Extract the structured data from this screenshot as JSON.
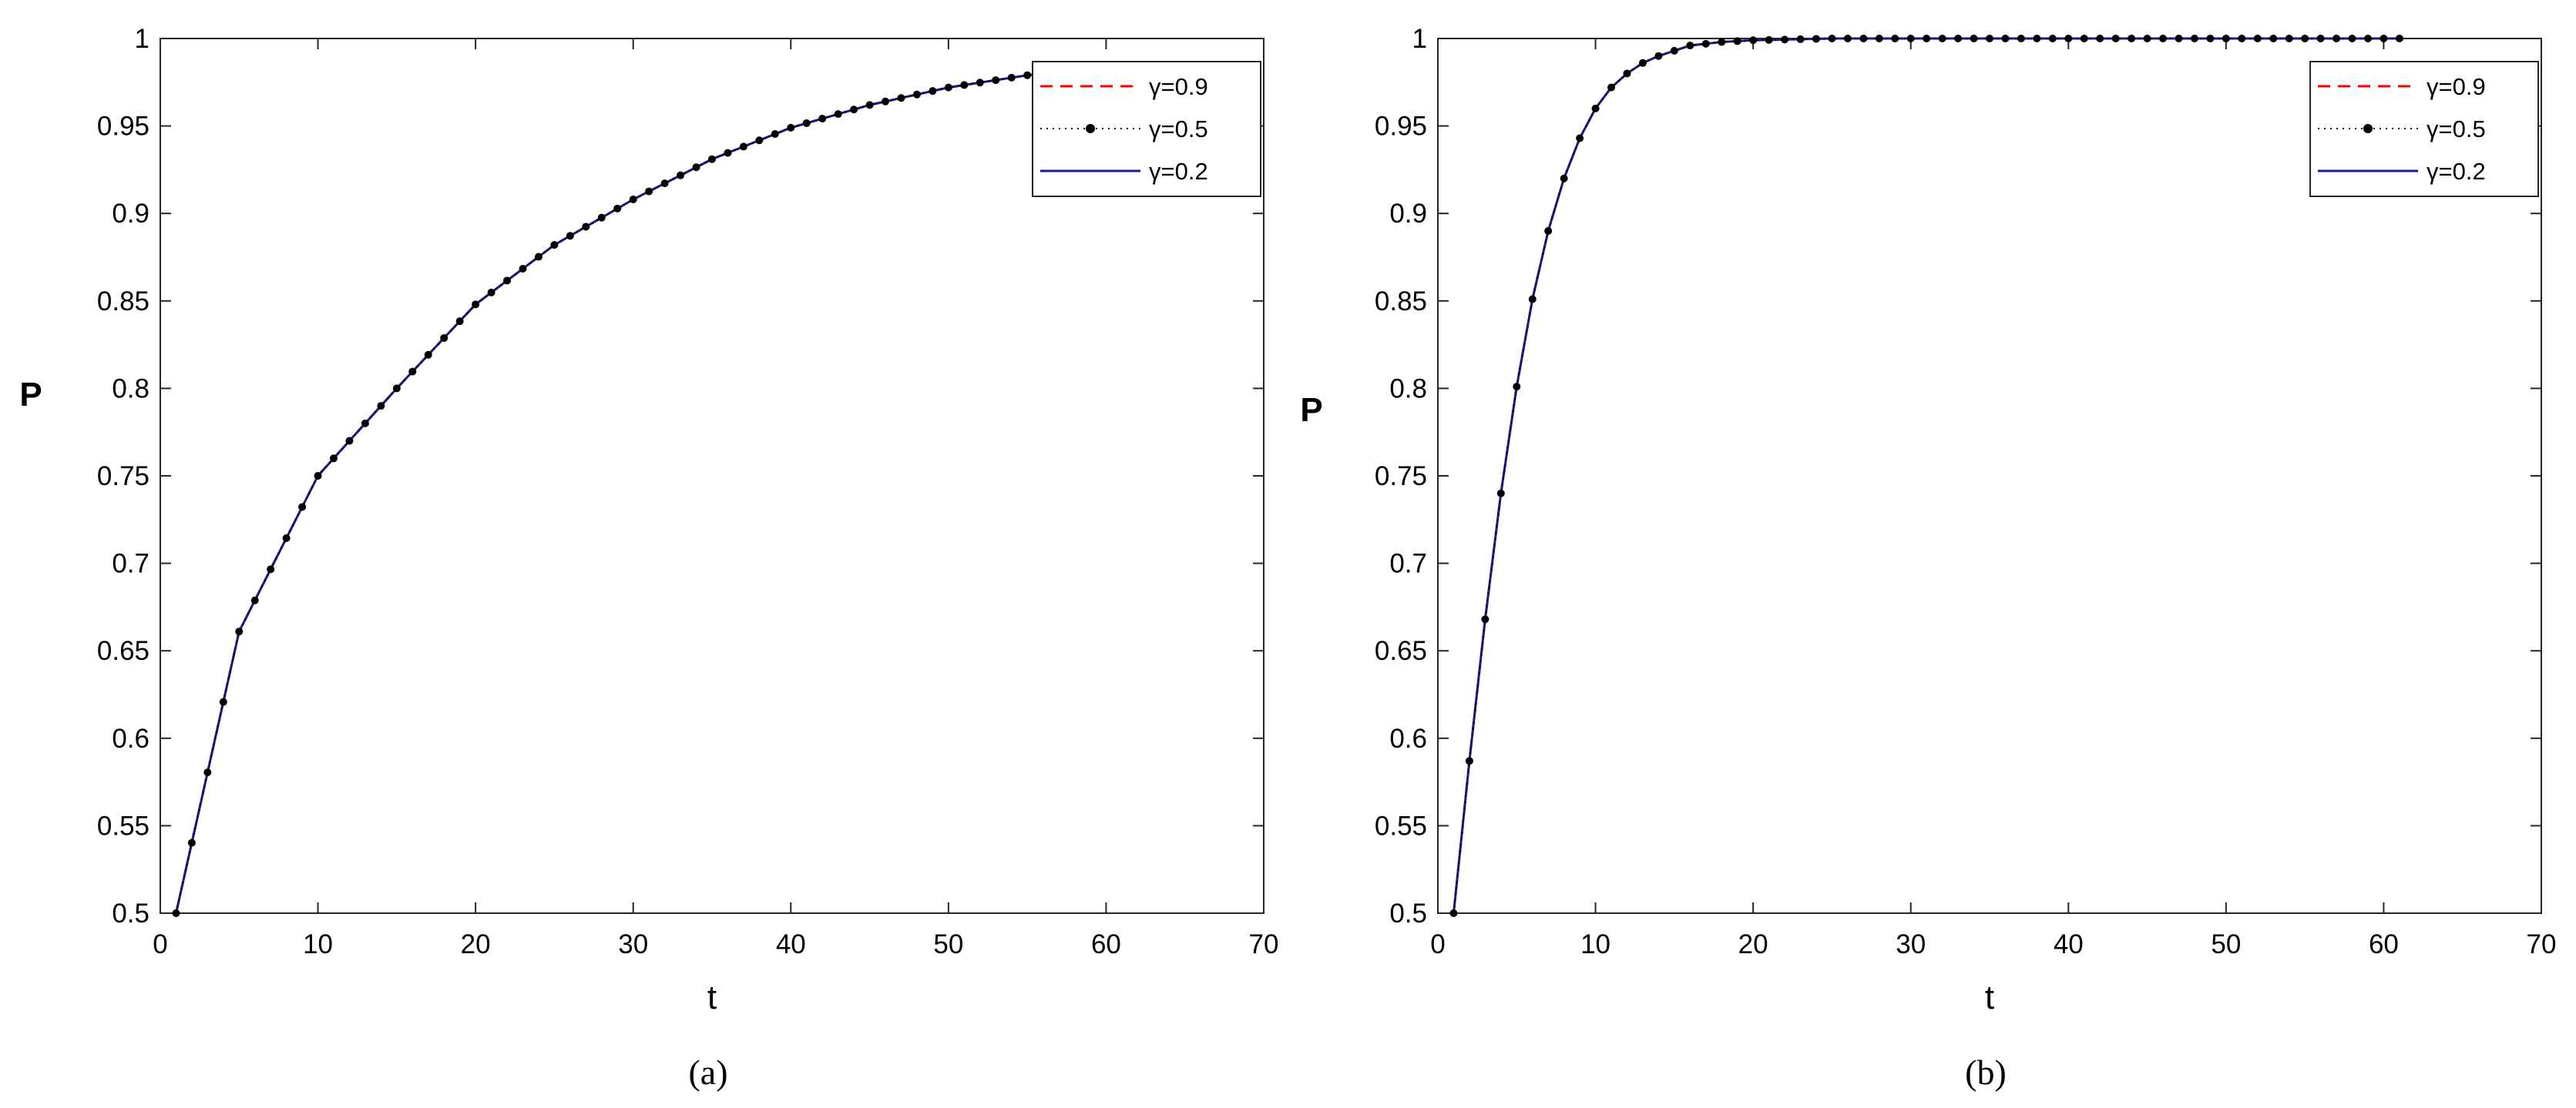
{
  "chart_data": [
    {
      "type": "line",
      "caption": "(a)",
      "xlabel": "t",
      "ylabel": "P",
      "xlim": [
        0,
        70
      ],
      "ylim": [
        0.5,
        1
      ],
      "xticks": [
        0,
        10,
        20,
        30,
        40,
        50,
        60,
        70
      ],
      "yticks": [
        0.5,
        0.55,
        0.6,
        0.65,
        0.7,
        0.75,
        0.8,
        0.85,
        0.9,
        0.95,
        1
      ],
      "ytick_labels": [
        "0.5",
        "0.55",
        "0.6",
        "0.65",
        "0.7",
        "0.75",
        "0.8",
        "0.85",
        "0.9",
        "0.95",
        "1"
      ],
      "legend_position": "top-right",
      "x": [
        1,
        5,
        10,
        15,
        20,
        25,
        30,
        35,
        40,
        45,
        50,
        55,
        61
      ],
      "series": [
        {
          "name": "γ=0.9",
          "style": "dashed",
          "color": "#ff0000",
          "values": [
            0.5,
            0.661,
            0.75,
            0.8,
            0.848,
            0.882,
            0.908,
            0.931,
            0.949,
            0.962,
            0.972,
            0.979,
            0.985
          ]
        },
        {
          "name": "γ=0.5",
          "style": "dotted-markers",
          "color": "#000000",
          "values": [
            0.5,
            0.661,
            0.75,
            0.8,
            0.848,
            0.882,
            0.908,
            0.931,
            0.949,
            0.962,
            0.972,
            0.979,
            0.985
          ]
        },
        {
          "name": "γ=0.2",
          "style": "solid",
          "color": "#1a1a8c",
          "values": [
            0.5,
            0.661,
            0.75,
            0.8,
            0.848,
            0.882,
            0.908,
            0.931,
            0.949,
            0.962,
            0.972,
            0.979,
            0.985
          ]
        }
      ]
    },
    {
      "type": "line",
      "caption": "(b)",
      "xlabel": "t",
      "ylabel": "P",
      "xlim": [
        0,
        70
      ],
      "ylim": [
        0.5,
        1
      ],
      "xticks": [
        0,
        10,
        20,
        30,
        40,
        50,
        60,
        70
      ],
      "yticks": [
        0.5,
        0.55,
        0.6,
        0.65,
        0.7,
        0.75,
        0.8,
        0.85,
        0.9,
        0.95,
        1
      ],
      "ytick_labels": [
        "0.5",
        "0.55",
        "0.6",
        "0.65",
        "0.7",
        "0.75",
        "0.8",
        "0.85",
        "0.9",
        "0.95",
        "1"
      ],
      "legend_position": "top-right",
      "x": [
        1,
        2,
        3,
        4,
        5,
        6,
        7,
        8,
        9,
        10,
        11,
        12,
        13,
        14,
        15,
        16,
        17,
        18,
        20,
        25,
        30,
        40,
        50,
        61
      ],
      "series": [
        {
          "name": "γ=0.9",
          "style": "dashed",
          "color": "#ff0000",
          "values": [
            0.5,
            0.587,
            0.668,
            0.74,
            0.801,
            0.851,
            0.89,
            0.92,
            0.943,
            0.96,
            0.972,
            0.98,
            0.986,
            0.99,
            0.993,
            0.996,
            0.997,
            0.998,
            0.999,
            1,
            1,
            1,
            1,
            1
          ]
        },
        {
          "name": "γ=0.5",
          "style": "dotted-markers",
          "color": "#000000",
          "values": [
            0.5,
            0.587,
            0.668,
            0.74,
            0.801,
            0.851,
            0.89,
            0.92,
            0.943,
            0.96,
            0.972,
            0.98,
            0.986,
            0.99,
            0.993,
            0.996,
            0.997,
            0.998,
            0.999,
            1,
            1,
            1,
            1,
            1
          ]
        },
        {
          "name": "γ=0.2",
          "style": "solid",
          "color": "#1a1a8c",
          "values": [
            0.5,
            0.587,
            0.668,
            0.74,
            0.801,
            0.851,
            0.89,
            0.92,
            0.943,
            0.96,
            0.972,
            0.98,
            0.986,
            0.99,
            0.993,
            0.996,
            0.997,
            0.998,
            0.999,
            1,
            1,
            1,
            1,
            1
          ]
        }
      ]
    }
  ]
}
